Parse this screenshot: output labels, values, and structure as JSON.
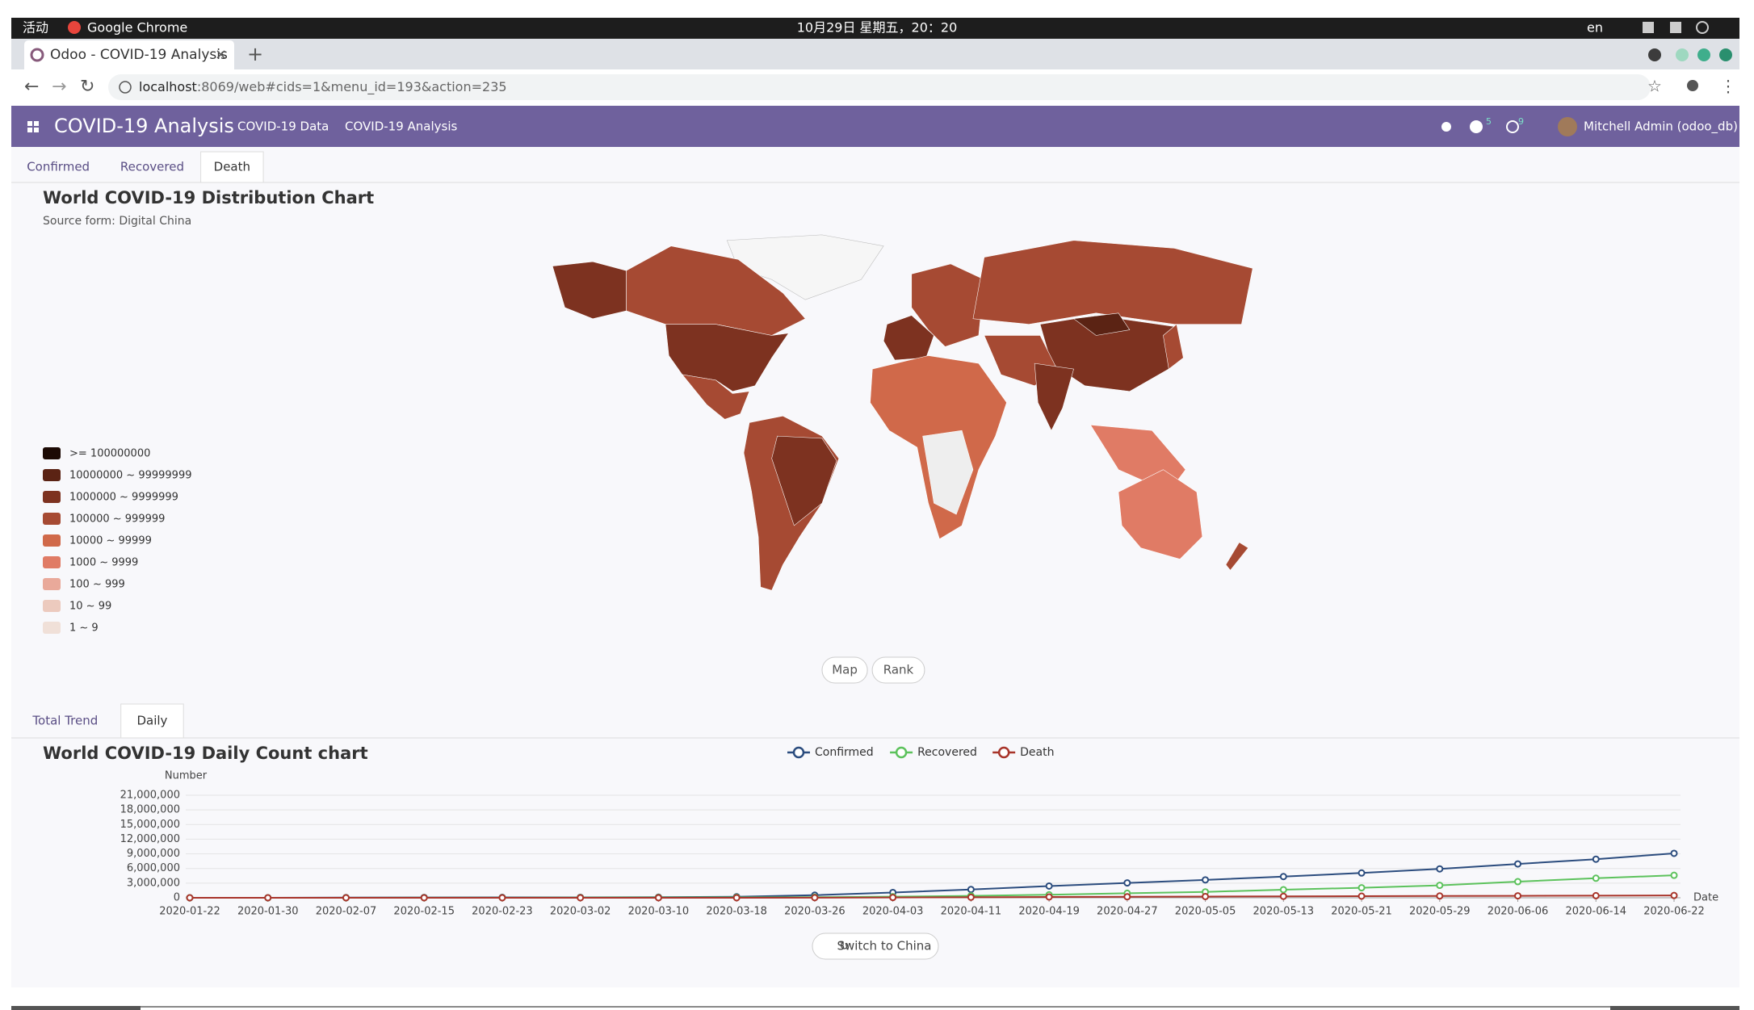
{
  "system_bar": {
    "activities": "活动",
    "app": "Google Chrome",
    "clock": "10月29日 星期五，20：20",
    "lang": "en"
  },
  "browser": {
    "tab_title": "Odoo - COVID-19 Analysis",
    "url_host": "localhost",
    "url_rest": ":8069/web#cids=1&menu_id=193&action=235"
  },
  "navbar": {
    "app_name": "COVID-19 Analysis",
    "menus": [
      "COVID-19 Data",
      "COVID-19 Analysis"
    ],
    "messages_count": "5",
    "activities_count": "9",
    "user": "Mitchell Admin (odoo_db)"
  },
  "map_tabs": {
    "items": [
      "Confirmed",
      "Recovered",
      "Death"
    ],
    "active": 2
  },
  "map_chart": {
    "title": "World COVID-19 Distribution Chart",
    "subtitle": "Source form: Digital China",
    "legend": [
      {
        "label": ">= 100000000",
        "color": "#1c0a04"
      },
      {
        "label": "10000000 ~ 99999999",
        "color": "#5b2314"
      },
      {
        "label": "1000000 ~ 9999999",
        "color": "#7d3220"
      },
      {
        "label": "100000 ~ 999999",
        "color": "#a64a33"
      },
      {
        "label": "10000 ~ 99999",
        "color": "#d0694a"
      },
      {
        "label": "1000 ~ 9999",
        "color": "#e07b65"
      },
      {
        "label": "100 ~ 999",
        "color": "#e9a99a"
      },
      {
        "label": "10 ~ 99",
        "color": "#eccabe"
      },
      {
        "label": "1 ~ 9",
        "color": "#f0e0d8"
      }
    ]
  },
  "view_buttons": [
    "Map",
    "Rank"
  ],
  "trend_tabs": {
    "items": [
      "Total Trend",
      "Daily"
    ],
    "active": 1
  },
  "chart_data": {
    "type": "line",
    "title": "World COVID-19 Daily Count chart",
    "y_label": "Number",
    "x_label": "Date",
    "categories": [
      "2020-01-22",
      "2020-01-30",
      "2020-02-07",
      "2020-02-15",
      "2020-02-23",
      "2020-03-02",
      "2020-03-10",
      "2020-03-18",
      "2020-03-26",
      "2020-04-03",
      "2020-04-11",
      "2020-04-19",
      "2020-04-27",
      "2020-05-05",
      "2020-05-13",
      "2020-05-21",
      "2020-05-29",
      "2020-06-06",
      "2020-06-14",
      "2020-06-22"
    ],
    "series": [
      {
        "name": "Confirmed",
        "color": "#2b4c7e",
        "values": [
          555,
          9927,
          34000,
          69000,
          79000,
          90000,
          118000,
          215000,
          528000,
          1080000,
          1700000,
          2400000,
          3040000,
          3660000,
          4340000,
          5080000,
          5920000,
          6930000,
          7900000,
          9100000
        ]
      },
      {
        "name": "Recovered",
        "color": "#5cc25c",
        "values": [
          28,
          200,
          1500,
          15000,
          25000,
          45000,
          65000,
          84000,
          120000,
          230000,
          400000,
          620000,
          920000,
          1200000,
          1660000,
          2050000,
          2550000,
          3300000,
          4000000,
          4600000
        ]
      },
      {
        "name": "Death",
        "color": "#a8342a",
        "values": [
          17,
          213,
          720,
          1770,
          2460,
          3100,
          4260,
          8800,
          24000,
          59000,
          109000,
          166000,
          211000,
          255000,
          297000,
          331000,
          366000,
          400000,
          432000,
          470000
        ]
      }
    ],
    "ylim": [
      0,
      21000000
    ],
    "yticks": [
      0,
      {
        "value": 3000000,
        "label": "3,000,000"
      },
      {
        "value": 6000000,
        "label": "6,000,000"
      },
      {
        "value": 9000000,
        "label": "9,000,000"
      },
      {
        "value": 12000000,
        "label": "12,000,000"
      },
      {
        "value": 15000000,
        "label": "15,000,000"
      },
      {
        "value": 18000000,
        "label": "18,000,000"
      },
      {
        "value": 21000000,
        "label": "21,000,000"
      }
    ],
    "grid": true,
    "legend": "top"
  },
  "switch_button": "Switch to China"
}
